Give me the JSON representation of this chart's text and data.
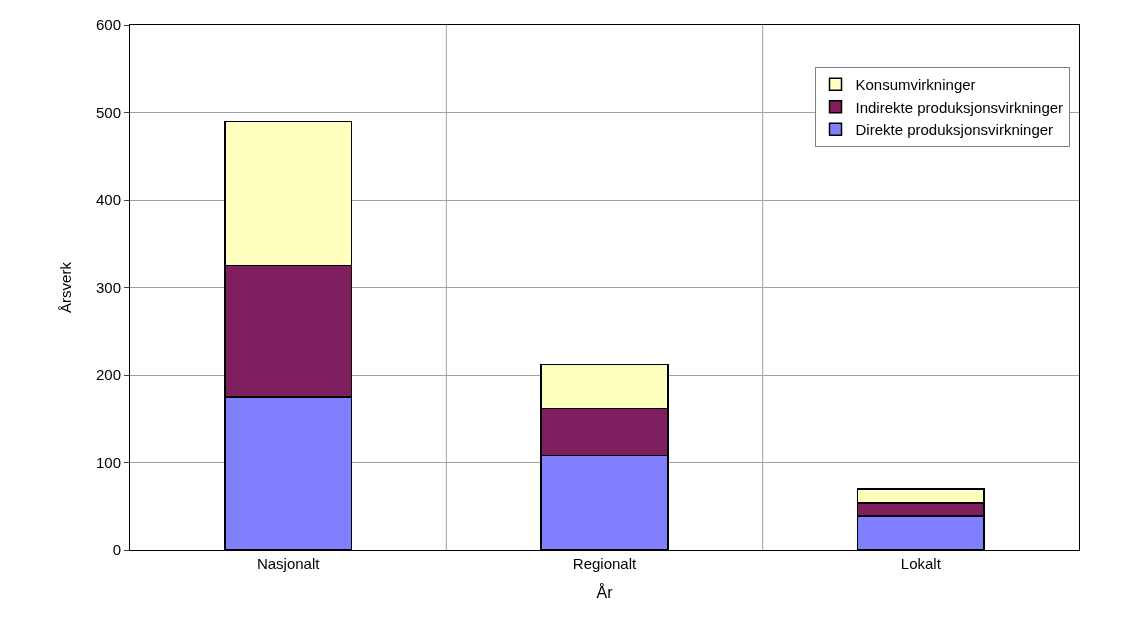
{
  "chart_data": {
    "type": "bar",
    "stacked": true,
    "xlabel": "År",
    "ylabel": "Årsverk",
    "categories": [
      "Nasjonalt",
      "Regionalt",
      "Lokalt"
    ],
    "series": [
      {
        "name": "Direkte produksjonsvirkninger",
        "color": "#8080ff",
        "values": [
          175,
          108,
          39
        ]
      },
      {
        "name": "Indirekte produksjonsvirkninger",
        "color": "#7f1f5f",
        "values": [
          150,
          54,
          15
        ]
      },
      {
        "name": "Konsumvirkninger",
        "color": "#ffffc0",
        "values": [
          165,
          50,
          16
        ]
      }
    ],
    "ylim": [
      0,
      600
    ],
    "yticks": [
      0,
      100,
      200,
      300,
      400,
      500,
      600
    ],
    "grid": true,
    "legend": "top right"
  }
}
